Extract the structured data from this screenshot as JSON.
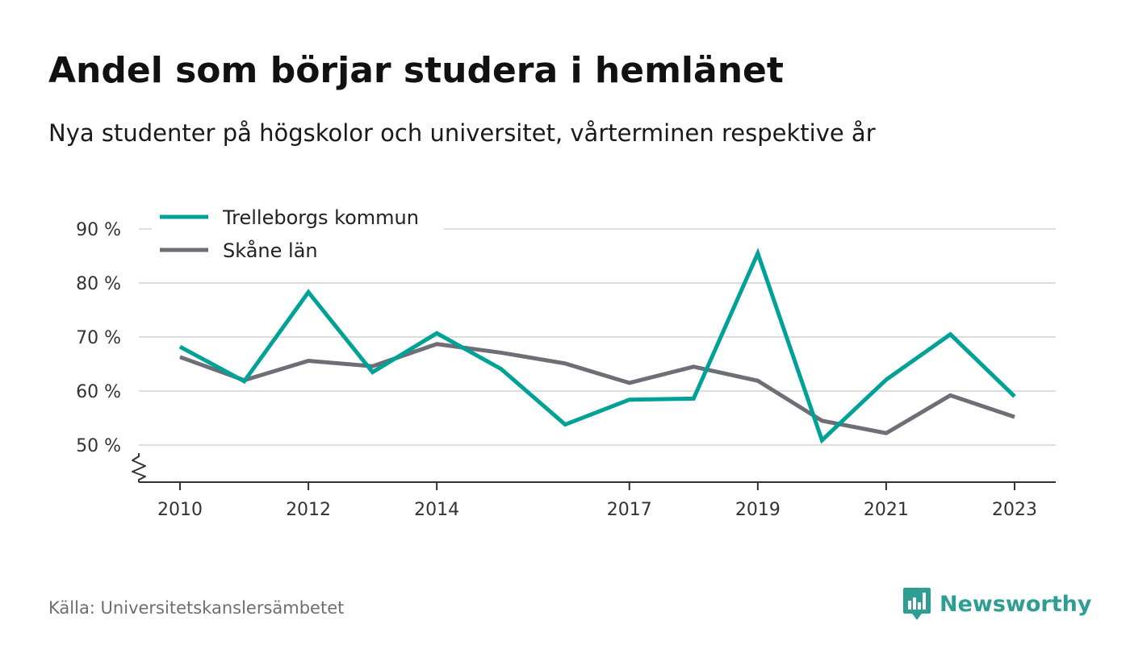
{
  "header": {
    "title": "Andel som börjar studera i hemlänet",
    "subtitle": "Nya studenter på högskolor och universitet, vårterminen respektive år"
  },
  "footer": {
    "source": "Källa: Universitetskanslersämbetet",
    "brand": "Newsworthy",
    "brand_icon": "newsworthy-logo-icon"
  },
  "colors": {
    "trelleborg": "#00a197",
    "skane": "#6e6e76",
    "grid": "#dddddd",
    "axis": "#333333",
    "brand": "#2e9d93"
  },
  "chart_data": {
    "type": "line",
    "x": [
      2010,
      2011,
      2012,
      2013,
      2014,
      2015,
      2016,
      2017,
      2018,
      2019,
      2020,
      2021,
      2022,
      2023
    ],
    "x_tick_labels": [
      "2010",
      "2012",
      "2014",
      "2017",
      "2019",
      "2021",
      "2023"
    ],
    "y_tick_labels": [
      "50 %",
      "60 %",
      "70 %",
      "80 %",
      "90 %"
    ],
    "y_ticks": [
      50,
      60,
      70,
      80,
      90
    ],
    "ylim": [
      43,
      90
    ],
    "y_axis_break": true,
    "grid": true,
    "legend_position": "top-left",
    "series": [
      {
        "name": "Trelleborgs kommun",
        "color": "#00a197",
        "values": [
          68.2,
          61.8,
          78.3,
          63.5,
          70.7,
          64.1,
          53.8,
          58.4,
          58.6,
          85.5,
          50.9,
          62.1,
          70.5,
          59.0
        ]
      },
      {
        "name": "Skåne län",
        "color": "#6e6e76",
        "values": [
          66.3,
          62.0,
          65.6,
          64.6,
          68.7,
          67.1,
          65.1,
          61.5,
          64.5,
          61.9,
          54.5,
          52.2,
          59.2,
          55.2
        ]
      }
    ]
  }
}
